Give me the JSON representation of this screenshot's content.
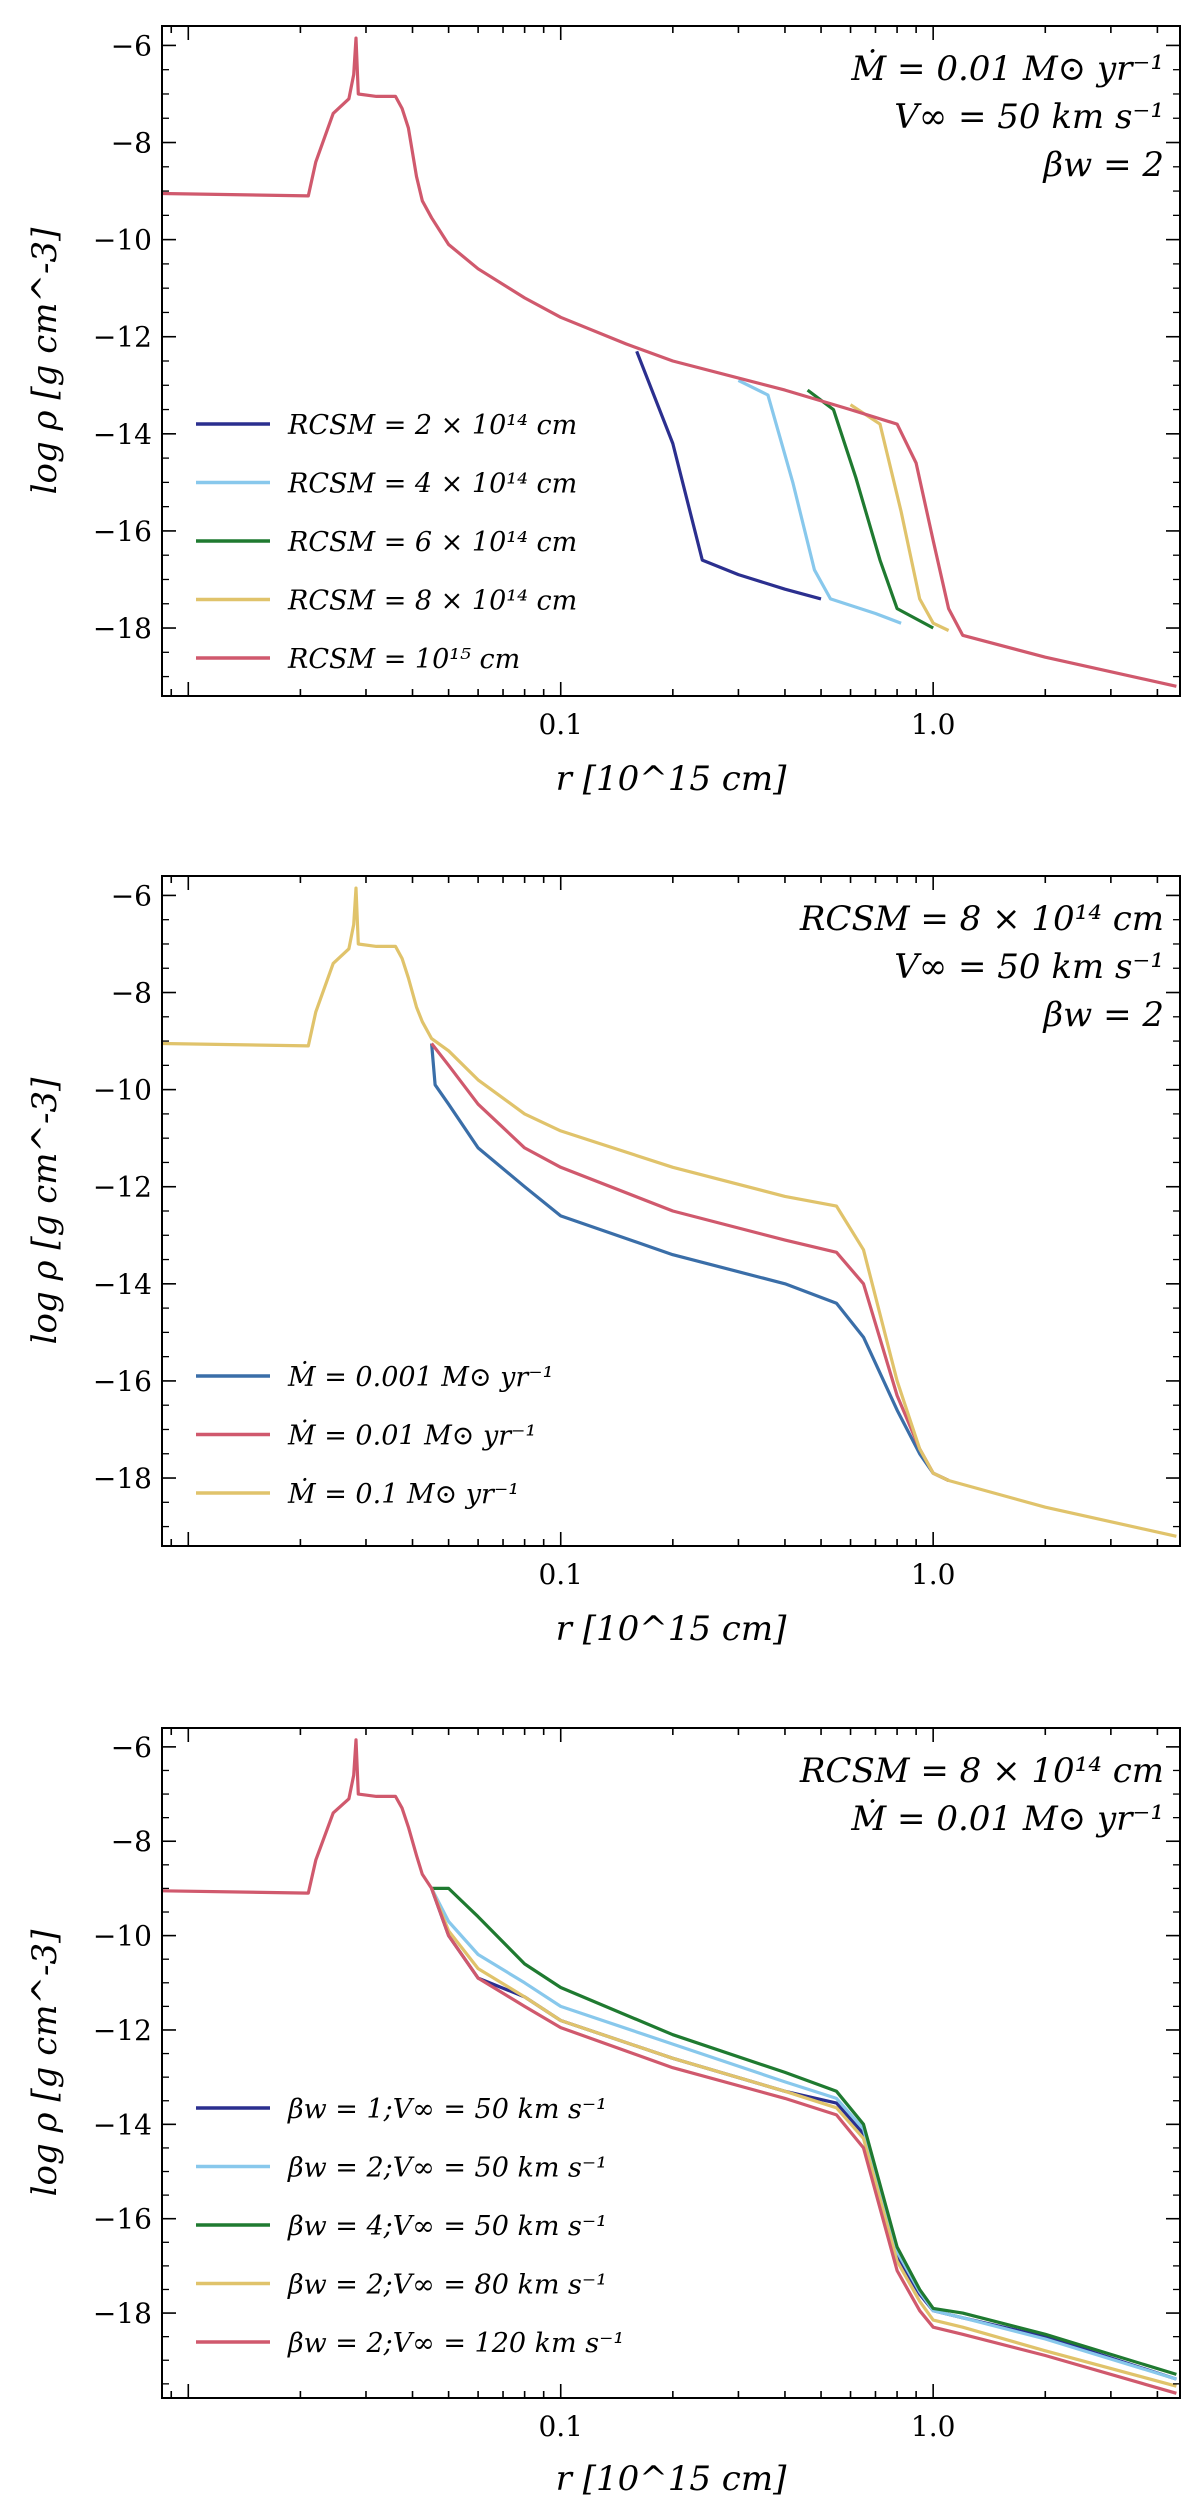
{
  "chart_data": [
    {
      "type": "line",
      "xscale": "log",
      "xlabel": "r [10^15 cm]",
      "ylabel": "log ρ [g cm^-3]",
      "xlim": [
        0.0085,
        4.6
      ],
      "ylim": [
        -19.4,
        -5.6
      ],
      "xticks": [
        {
          "v": 0.1,
          "label": "0.1"
        },
        {
          "v": 1.0,
          "label": "1.0"
        }
      ],
      "yticks": [
        {
          "v": -6,
          "label": "−6"
        },
        {
          "v": -8,
          "label": "−8"
        },
        {
          "v": -10,
          "label": "−10"
        },
        {
          "v": -12,
          "label": "−12"
        },
        {
          "v": -14,
          "label": "−14"
        },
        {
          "v": -16,
          "label": "−16"
        },
        {
          "v": -18,
          "label": "−18"
        }
      ],
      "annotations": [
        "Ṁ = 0.01 M⊙ yr⁻¹",
        "V∞ = 50 km s⁻¹",
        "βw = 2"
      ],
      "legend_position": "lower-left",
      "series": [
        {
          "name": "RCSM = 2 × 10¹⁴ cm",
          "color": "#2b2f8f",
          "points": [
            [
              0.16,
              -12.3
            ],
            [
              0.2,
              -14.2
            ],
            [
              0.24,
              -16.6
            ],
            [
              0.3,
              -16.9
            ],
            [
              0.4,
              -17.2
            ],
            [
              0.5,
              -17.4
            ]
          ]
        },
        {
          "name": "RCSM = 4 × 10¹⁴ cm",
          "color": "#88c8ec",
          "points": [
            [
              0.3,
              -12.9
            ],
            [
              0.36,
              -13.2
            ],
            [
              0.42,
              -15.0
            ],
            [
              0.48,
              -16.8
            ],
            [
              0.53,
              -17.4
            ],
            [
              0.7,
              -17.7
            ],
            [
              0.82,
              -17.9
            ]
          ]
        },
        {
          "name": "RCSM = 6 × 10¹⁴ cm",
          "color": "#1f7a30",
          "points": [
            [
              0.46,
              -13.1
            ],
            [
              0.54,
              -13.5
            ],
            [
              0.62,
              -14.9
            ],
            [
              0.72,
              -16.6
            ],
            [
              0.8,
              -17.6
            ],
            [
              1.0,
              -18.0
            ]
          ]
        },
        {
          "name": "RCSM = 8 × 10¹⁴ cm",
          "color": "#e0c36b",
          "points": [
            [
              0.6,
              -13.4
            ],
            [
              0.72,
              -13.8
            ],
            [
              0.82,
              -15.6
            ],
            [
              0.92,
              -17.4
            ],
            [
              1.0,
              -17.9
            ],
            [
              1.1,
              -18.05
            ]
          ]
        },
        {
          "name": "RCSM = 10¹⁵ cm",
          "color": "#d0596d",
          "points": [
            [
              0.0085,
              -9.05
            ],
            [
              0.021,
              -9.1
            ],
            [
              0.022,
              -8.4
            ],
            [
              0.0245,
              -7.4
            ],
            [
              0.027,
              -7.1
            ],
            [
              0.0278,
              -6.6
            ],
            [
              0.0282,
              -5.85
            ],
            [
              0.0286,
              -7.0
            ],
            [
              0.032,
              -7.05
            ],
            [
              0.036,
              -7.05
            ],
            [
              0.0375,
              -7.3
            ],
            [
              0.039,
              -7.7
            ],
            [
              0.041,
              -8.7
            ],
            [
              0.0425,
              -9.2
            ],
            [
              0.045,
              -9.55
            ],
            [
              0.05,
              -10.1
            ],
            [
              0.06,
              -10.6
            ],
            [
              0.08,
              -11.2
            ],
            [
              0.1,
              -11.6
            ],
            [
              0.15,
              -12.15
            ],
            [
              0.2,
              -12.5
            ],
            [
              0.4,
              -13.1
            ],
            [
              0.6,
              -13.5
            ],
            [
              0.8,
              -13.8
            ],
            [
              0.9,
              -14.6
            ],
            [
              1.0,
              -16.2
            ],
            [
              1.1,
              -17.6
            ],
            [
              1.2,
              -18.15
            ],
            [
              2.0,
              -18.6
            ],
            [
              4.5,
              -19.2
            ]
          ]
        }
      ]
    },
    {
      "type": "line",
      "xscale": "log",
      "xlabel": "r [10^15 cm]",
      "ylabel": "log ρ [g cm^-3]",
      "xlim": [
        0.0085,
        4.6
      ],
      "ylim": [
        -19.4,
        -5.6
      ],
      "xticks": [
        {
          "v": 0.1,
          "label": "0.1"
        },
        {
          "v": 1.0,
          "label": "1.0"
        }
      ],
      "yticks": [
        {
          "v": -6,
          "label": "−6"
        },
        {
          "v": -8,
          "label": "−8"
        },
        {
          "v": -10,
          "label": "−10"
        },
        {
          "v": -12,
          "label": "−12"
        },
        {
          "v": -14,
          "label": "−14"
        },
        {
          "v": -16,
          "label": "−16"
        },
        {
          "v": -18,
          "label": "−18"
        }
      ],
      "annotations": [
        "RCSM = 8 × 10¹⁴ cm",
        "V∞ = 50 km s⁻¹",
        "βw = 2"
      ],
      "legend_position": "lower-left",
      "series": [
        {
          "name": "Ṁ = 0.001 M⊙ yr⁻¹",
          "color": "#3a6ea8",
          "points": [
            [
              0.045,
              -9.05
            ],
            [
              0.046,
              -9.9
            ],
            [
              0.05,
              -10.3
            ],
            [
              0.06,
              -11.2
            ],
            [
              0.08,
              -12.0
            ],
            [
              0.1,
              -12.6
            ],
            [
              0.2,
              -13.4
            ],
            [
              0.4,
              -14.0
            ],
            [
              0.55,
              -14.4
            ],
            [
              0.65,
              -15.1
            ],
            [
              0.8,
              -16.6
            ],
            [
              0.92,
              -17.5
            ],
            [
              1.0,
              -17.9
            ],
            [
              1.1,
              -18.05
            ]
          ]
        },
        {
          "name": "Ṁ = 0.01 M⊙ yr⁻¹",
          "color": "#d0596d",
          "points": [
            [
              0.045,
              -9.05
            ],
            [
              0.05,
              -9.5
            ],
            [
              0.06,
              -10.3
            ],
            [
              0.08,
              -11.2
            ],
            [
              0.1,
              -11.6
            ],
            [
              0.2,
              -12.5
            ],
            [
              0.4,
              -13.1
            ],
            [
              0.55,
              -13.35
            ],
            [
              0.65,
              -14.0
            ],
            [
              0.8,
              -16.3
            ],
            [
              0.92,
              -17.4
            ],
            [
              1.0,
              -17.9
            ],
            [
              1.1,
              -18.05
            ]
          ]
        },
        {
          "name": "Ṁ = 0.1 M⊙ yr⁻¹",
          "color": "#e0c36b",
          "points": [
            [
              0.0085,
              -9.05
            ],
            [
              0.021,
              -9.1
            ],
            [
              0.022,
              -8.4
            ],
            [
              0.0245,
              -7.4
            ],
            [
              0.027,
              -7.1
            ],
            [
              0.0278,
              -6.6
            ],
            [
              0.0282,
              -5.85
            ],
            [
              0.0286,
              -7.0
            ],
            [
              0.032,
              -7.05
            ],
            [
              0.036,
              -7.05
            ],
            [
              0.0375,
              -7.3
            ],
            [
              0.039,
              -7.7
            ],
            [
              0.041,
              -8.3
            ],
            [
              0.0425,
              -8.6
            ],
            [
              0.045,
              -8.95
            ],
            [
              0.05,
              -9.2
            ],
            [
              0.06,
              -9.8
            ],
            [
              0.08,
              -10.5
            ],
            [
              0.1,
              -10.85
            ],
            [
              0.2,
              -11.6
            ],
            [
              0.4,
              -12.2
            ],
            [
              0.55,
              -12.4
            ],
            [
              0.65,
              -13.3
            ],
            [
              0.8,
              -16.0
            ],
            [
              0.92,
              -17.4
            ],
            [
              1.0,
              -17.9
            ],
            [
              1.1,
              -18.05
            ],
            [
              2.0,
              -18.6
            ],
            [
              4.5,
              -19.2
            ]
          ]
        }
      ]
    },
    {
      "type": "line",
      "xscale": "log",
      "xlabel": "r [10^15 cm]",
      "ylabel": "log ρ [g cm^-3]",
      "xlim": [
        0.0085,
        4.6
      ],
      "ylim": [
        -19.8,
        -5.6
      ],
      "xticks": [
        {
          "v": 0.1,
          "label": "0.1"
        },
        {
          "v": 1.0,
          "label": "1.0"
        }
      ],
      "yticks": [
        {
          "v": -6,
          "label": "−6"
        },
        {
          "v": -8,
          "label": "−8"
        },
        {
          "v": -10,
          "label": "−10"
        },
        {
          "v": -12,
          "label": "−12"
        },
        {
          "v": -14,
          "label": "−14"
        },
        {
          "v": -16,
          "label": "−16"
        },
        {
          "v": -18,
          "label": "−18"
        }
      ],
      "annotations": [
        "RCSM = 8 × 10¹⁴ cm",
        "Ṁ = 0.01 M⊙ yr⁻¹"
      ],
      "legend_position": "lower-left",
      "series": [
        {
          "name": "βw = 1;V∞ = 50 km s⁻¹",
          "color": "#2b2f8f",
          "points": [
            [
              0.045,
              -9.0
            ],
            [
              0.05,
              -10.0
            ],
            [
              0.06,
              -10.9
            ],
            [
              0.08,
              -11.3
            ],
            [
              0.1,
              -11.8
            ],
            [
              0.2,
              -12.6
            ],
            [
              0.4,
              -13.3
            ],
            [
              0.55,
              -13.55
            ],
            [
              0.65,
              -14.2
            ],
            [
              0.8,
              -16.8
            ],
            [
              0.92,
              -17.6
            ],
            [
              1.0,
              -17.95
            ],
            [
              1.2,
              -18.1
            ],
            [
              2.0,
              -18.5
            ],
            [
              4.5,
              -19.4
            ]
          ]
        },
        {
          "name": "βw = 2;V∞ = 50 km s⁻¹",
          "color": "#88c8ec",
          "points": [
            [
              0.045,
              -9.0
            ],
            [
              0.05,
              -9.7
            ],
            [
              0.06,
              -10.4
            ],
            [
              0.08,
              -11.0
            ],
            [
              0.1,
              -11.5
            ],
            [
              0.2,
              -12.3
            ],
            [
              0.4,
              -13.1
            ],
            [
              0.55,
              -13.45
            ],
            [
              0.65,
              -14.1
            ],
            [
              0.8,
              -16.7
            ],
            [
              0.92,
              -17.55
            ],
            [
              1.0,
              -17.95
            ],
            [
              1.2,
              -18.1
            ],
            [
              2.0,
              -18.55
            ],
            [
              4.5,
              -19.4
            ]
          ]
        },
        {
          "name": "βw = 4;V∞ = 50 km s⁻¹",
          "color": "#1f7a30",
          "points": [
            [
              0.045,
              -9.0
            ],
            [
              0.05,
              -9.0
            ],
            [
              0.06,
              -9.6
            ],
            [
              0.08,
              -10.6
            ],
            [
              0.1,
              -11.1
            ],
            [
              0.2,
              -12.1
            ],
            [
              0.4,
              -12.9
            ],
            [
              0.55,
              -13.3
            ],
            [
              0.65,
              -14.0
            ],
            [
              0.8,
              -16.6
            ],
            [
              0.92,
              -17.5
            ],
            [
              1.0,
              -17.9
            ],
            [
              1.2,
              -18.0
            ],
            [
              2.0,
              -18.45
            ],
            [
              4.5,
              -19.3
            ]
          ]
        },
        {
          "name": "βw = 2;V∞ = 80 km s⁻¹",
          "color": "#e0c36b",
          "points": [
            [
              0.045,
              -9.0
            ],
            [
              0.05,
              -9.9
            ],
            [
              0.06,
              -10.7
            ],
            [
              0.08,
              -11.3
            ],
            [
              0.1,
              -11.8
            ],
            [
              0.2,
              -12.6
            ],
            [
              0.4,
              -13.3
            ],
            [
              0.55,
              -13.65
            ],
            [
              0.65,
              -14.3
            ],
            [
              0.8,
              -16.9
            ],
            [
              0.92,
              -17.75
            ],
            [
              1.0,
              -18.15
            ],
            [
              1.2,
              -18.3
            ],
            [
              2.0,
              -18.8
            ],
            [
              4.5,
              -19.55
            ]
          ]
        },
        {
          "name": "βw = 2;V∞ = 120 km s⁻¹",
          "color": "#d0596d",
          "points": [
            [
              0.0085,
              -9.05
            ],
            [
              0.021,
              -9.1
            ],
            [
              0.022,
              -8.4
            ],
            [
              0.0245,
              -7.4
            ],
            [
              0.027,
              -7.1
            ],
            [
              0.0278,
              -6.6
            ],
            [
              0.0282,
              -5.85
            ],
            [
              0.0286,
              -7.0
            ],
            [
              0.032,
              -7.05
            ],
            [
              0.036,
              -7.05
            ],
            [
              0.0375,
              -7.3
            ],
            [
              0.039,
              -7.7
            ],
            [
              0.041,
              -8.3
            ],
            [
              0.0425,
              -8.7
            ],
            [
              0.045,
              -9.0
            ],
            [
              0.05,
              -10.0
            ],
            [
              0.06,
              -10.9
            ],
            [
              0.08,
              -11.5
            ],
            [
              0.1,
              -11.95
            ],
            [
              0.2,
              -12.8
            ],
            [
              0.4,
              -13.45
            ],
            [
              0.55,
              -13.8
            ],
            [
              0.65,
              -14.5
            ],
            [
              0.8,
              -17.1
            ],
            [
              0.92,
              -17.95
            ],
            [
              1.0,
              -18.3
            ],
            [
              1.2,
              -18.45
            ],
            [
              2.0,
              -18.9
            ],
            [
              4.5,
              -19.7
            ]
          ]
        }
      ]
    }
  ]
}
